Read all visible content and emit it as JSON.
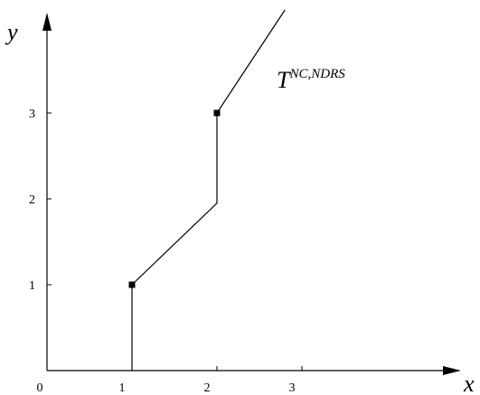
{
  "chart_data": {
    "type": "line",
    "title": "",
    "xlabel": "x",
    "ylabel": "y",
    "origin_label": "0",
    "xlim": [
      0,
      4.7
    ],
    "ylim": [
      0,
      4.2
    ],
    "x_ticks": [
      1,
      2,
      3
    ],
    "y_ticks": [
      1,
      2,
      3
    ],
    "x_tick_labels": [
      "1",
      "2",
      "3"
    ],
    "y_tick_labels": [
      "1",
      "2",
      "3"
    ],
    "grid": false,
    "legend": "none",
    "curve_label": {
      "base": "T",
      "superscript": "NC,NDRS"
    },
    "series": [
      {
        "points": [
          [
            1,
            0
          ],
          [
            1,
            1
          ],
          [
            2,
            1.95
          ],
          [
            2,
            3
          ],
          [
            2.8,
            4.2
          ]
        ]
      }
    ],
    "markers": [
      [
        1,
        1
      ],
      [
        2,
        3
      ]
    ],
    "colors": {
      "line": "#000000",
      "axis": "#000000"
    }
  }
}
